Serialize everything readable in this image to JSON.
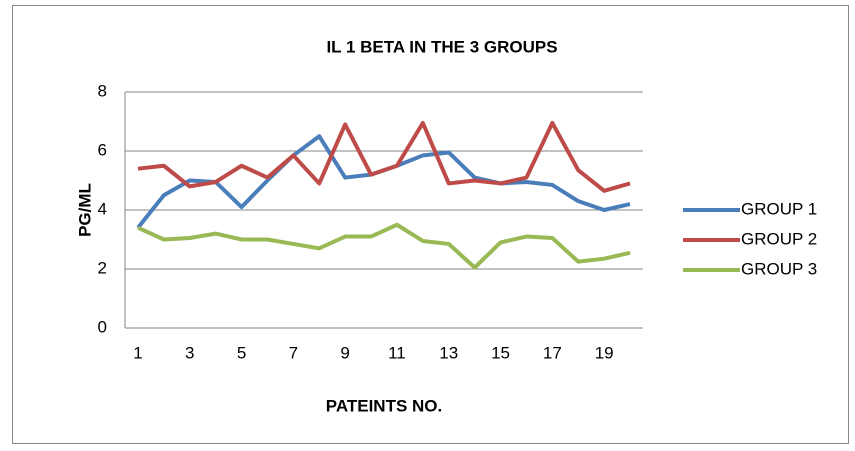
{
  "chart_data": {
    "type": "line",
    "title": "IL 1 BETA IN THE 3 GROUPS",
    "x_label": "PATEINTS NO.",
    "y_label": "PG/ML",
    "categories": [
      "1",
      null,
      "3",
      null,
      "5",
      null,
      "7",
      null,
      "9",
      null,
      "11",
      null,
      "13",
      null,
      "15",
      null,
      "17",
      null,
      "19",
      null
    ],
    "series": [
      {
        "name": "GROUP 1",
        "color": "#4a7ebb",
        "values": [
          3.4,
          4.5,
          5.0,
          4.95,
          4.1,
          5.0,
          5.85,
          6.5,
          5.1,
          5.2,
          5.5,
          5.85,
          5.95,
          5.1,
          4.9,
          4.95,
          4.85,
          4.3,
          4.0,
          4.2
        ]
      },
      {
        "name": "GROUP 2",
        "color": "#be4b48",
        "values": [
          5.4,
          5.5,
          4.8,
          4.95,
          5.5,
          5.1,
          5.85,
          4.9,
          6.9,
          5.2,
          5.5,
          6.95,
          4.9,
          5.0,
          4.9,
          5.1,
          6.95,
          5.35,
          4.65,
          4.9
        ]
      },
      {
        "name": "GROUP 3",
        "color": "#98b954",
        "values": [
          3.4,
          3.0,
          3.05,
          3.2,
          3.0,
          3.0,
          2.85,
          2.7,
          3.1,
          3.1,
          3.5,
          2.95,
          2.85,
          2.05,
          2.9,
          3.1,
          3.05,
          2.25,
          2.35,
          2.55
        ]
      }
    ],
    "ylim": [
      0,
      8
    ],
    "yticks": [
      0,
      2,
      4,
      6,
      8
    ],
    "grid": true,
    "legend": "right"
  }
}
